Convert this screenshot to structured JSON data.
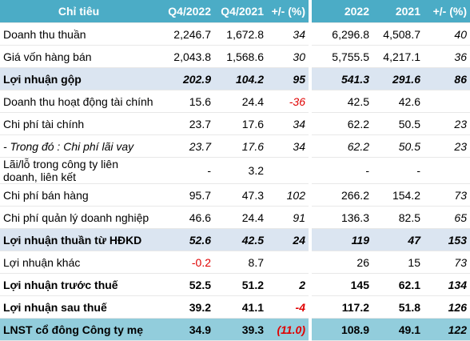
{
  "table": {
    "header": [
      "Chỉ tiêu",
      "Q4/2022",
      "Q4/2021",
      "+/- (%)",
      "2022",
      "2021",
      "+/- (%)"
    ],
    "rows": [
      {
        "cells": [
          "Doanh thu thuần",
          "2,246.7",
          "1,672.8",
          "34",
          "6,296.8",
          "4,508.7",
          "40"
        ]
      },
      {
        "cells": [
          "Giá vốn hàng bán",
          "2,043.8",
          "1,568.6",
          "30",
          "5,755.5",
          "4,217.1",
          "36"
        ]
      },
      {
        "cells": [
          "Lợi nhuận gộp",
          "202.9",
          "104.2",
          "95",
          "541.3",
          "291.6",
          "86"
        ],
        "bold": true,
        "italic_values": true,
        "shaded": true
      },
      {
        "cells": [
          "Doanh thu hoạt động tài chính",
          "15.6",
          "24.4",
          "-36",
          "42.5",
          "42.6",
          null
        ]
      },
      {
        "cells": [
          "Chi phí tài chính",
          "23.7",
          "17.6",
          "34",
          "62.2",
          "50.5",
          "23"
        ]
      },
      {
        "cells": [
          "- Trong đó : Chi phí lãi vay",
          "23.7",
          "17.6",
          "34",
          "62.2",
          "50.5",
          "23"
        ],
        "italic": true
      },
      {
        "cells": [
          "Lãi/lỗ trong công ty liên doanh, liên kết",
          "-",
          "3.2",
          null,
          "-",
          "-",
          null
        ]
      },
      {
        "cells": [
          "Chi phí bán hàng",
          "95.7",
          "47.3",
          "102",
          "266.2",
          "154.2",
          "73"
        ]
      },
      {
        "cells": [
          "Chi phí quản lý doanh nghiệp",
          "46.6",
          "24.4",
          "91",
          "136.3",
          "82.5",
          "65"
        ]
      },
      {
        "cells": [
          "Lợi nhuận thuần từ HĐKD",
          "52.6",
          "42.5",
          "24",
          "119",
          "47",
          "153"
        ],
        "bold": true,
        "italic_values": true,
        "shaded": true
      },
      {
        "cells": [
          "Lợi nhuận khác",
          "-0.2",
          "8.7",
          null,
          "26",
          "15",
          "73"
        ]
      },
      {
        "cells": [
          "Lợi nhuận trước thuế",
          "52.5",
          "51.2",
          "2",
          "145",
          "62.1",
          "134"
        ],
        "bold": true
      },
      {
        "cells": [
          "Lợi nhuận sau thuế",
          "39.2",
          "41.1",
          "-4",
          "117.2",
          "51.8",
          "126"
        ],
        "bold": true
      },
      {
        "cells": [
          "LNST cổ đông Công ty mẹ",
          "34.9",
          "39.3",
          "(11.0)",
          "108.9",
          "49.1",
          "122"
        ],
        "bold": true,
        "total": true
      }
    ]
  }
}
